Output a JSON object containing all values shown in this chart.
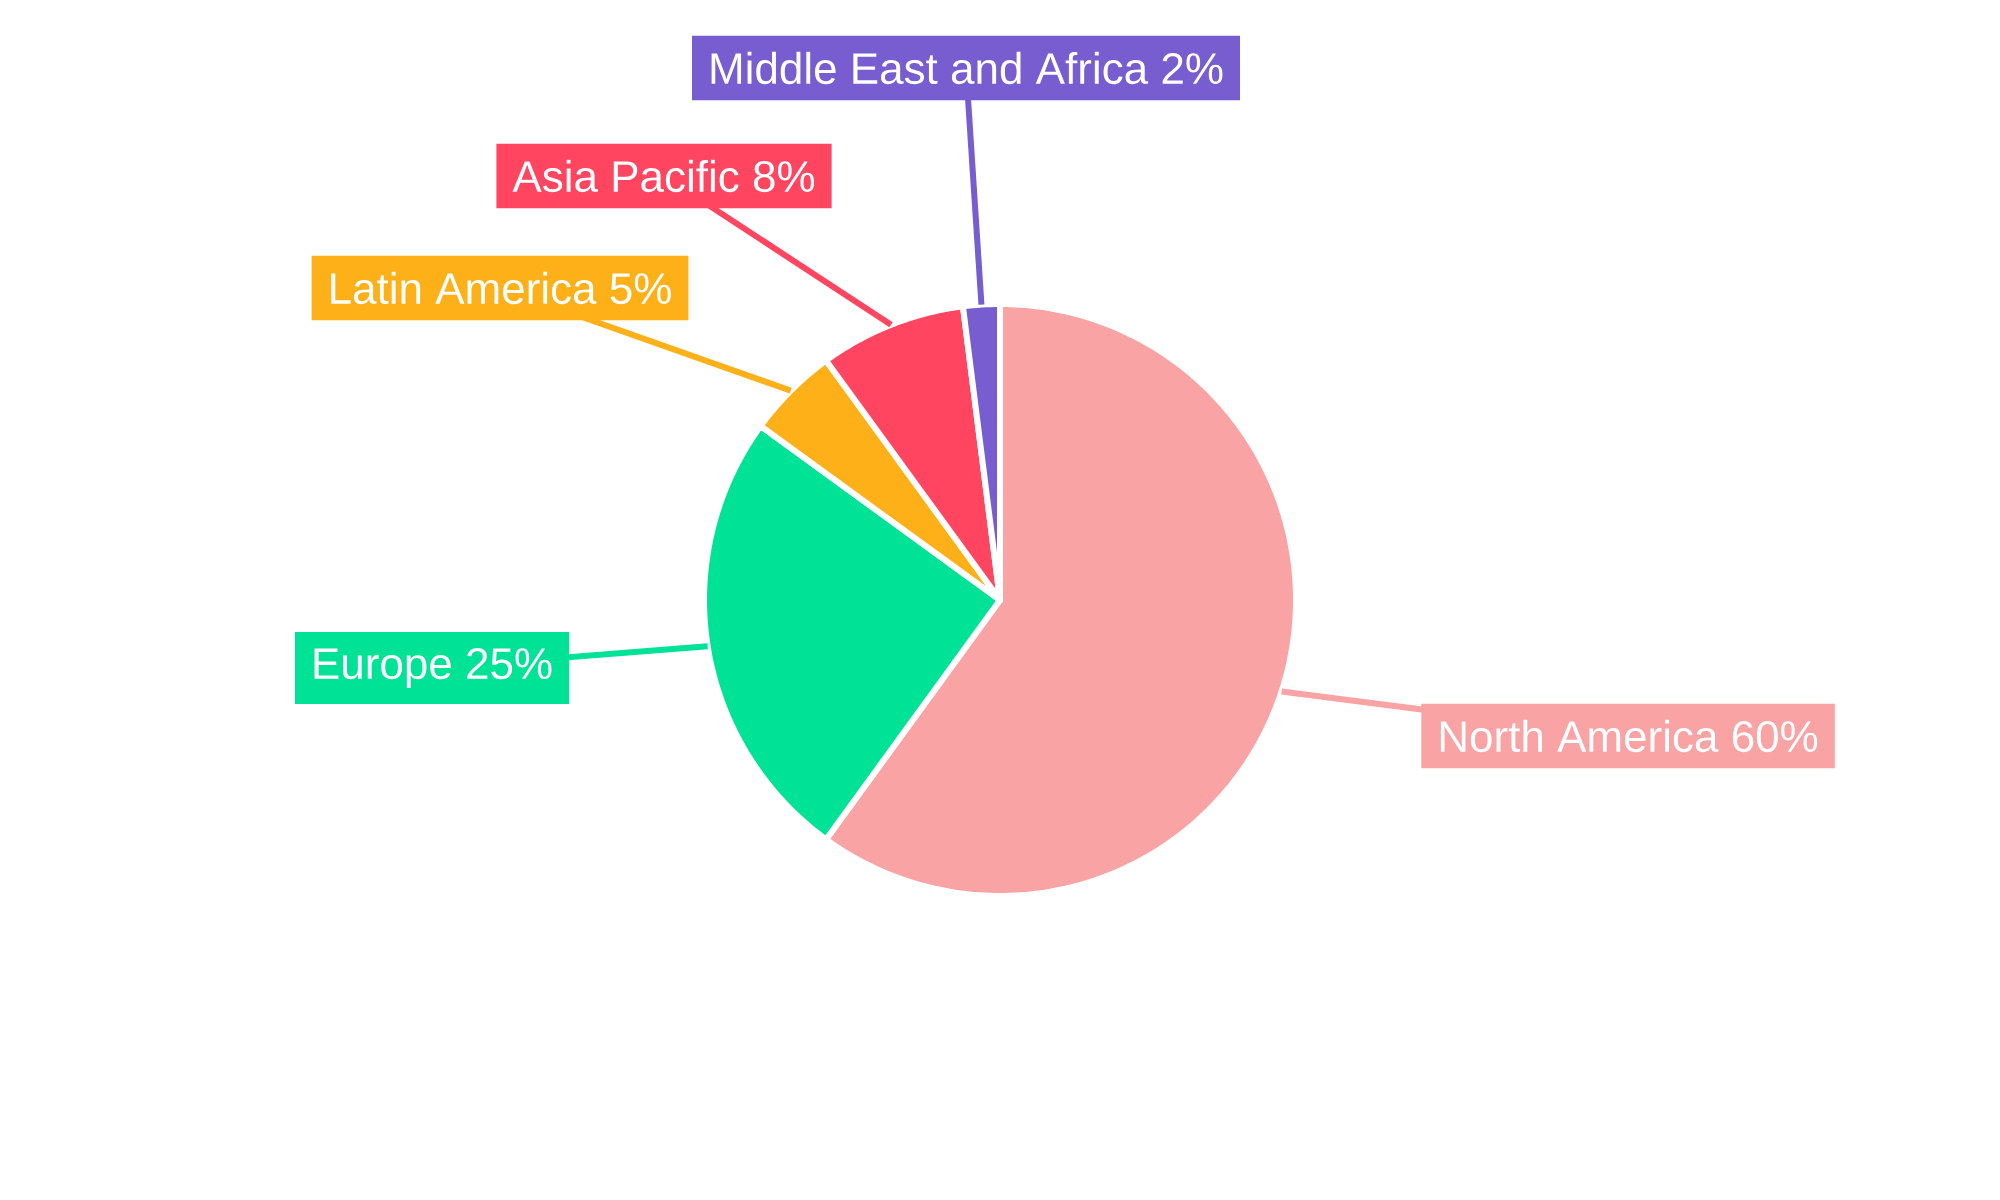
{
  "chart_data": {
    "type": "pie",
    "categories": [
      "North America",
      "Europe",
      "Latin America",
      "Asia Pacific",
      "Middle East and Africa"
    ],
    "values": [
      60,
      25,
      5,
      8,
      2
    ],
    "value_labels": [
      "60%",
      "25%",
      "5%",
      "8%",
      "2%"
    ],
    "colors": [
      "#f9a3a4",
      "#00e396",
      "#feb019",
      "#ff4560",
      "#775dd0"
    ]
  }
}
